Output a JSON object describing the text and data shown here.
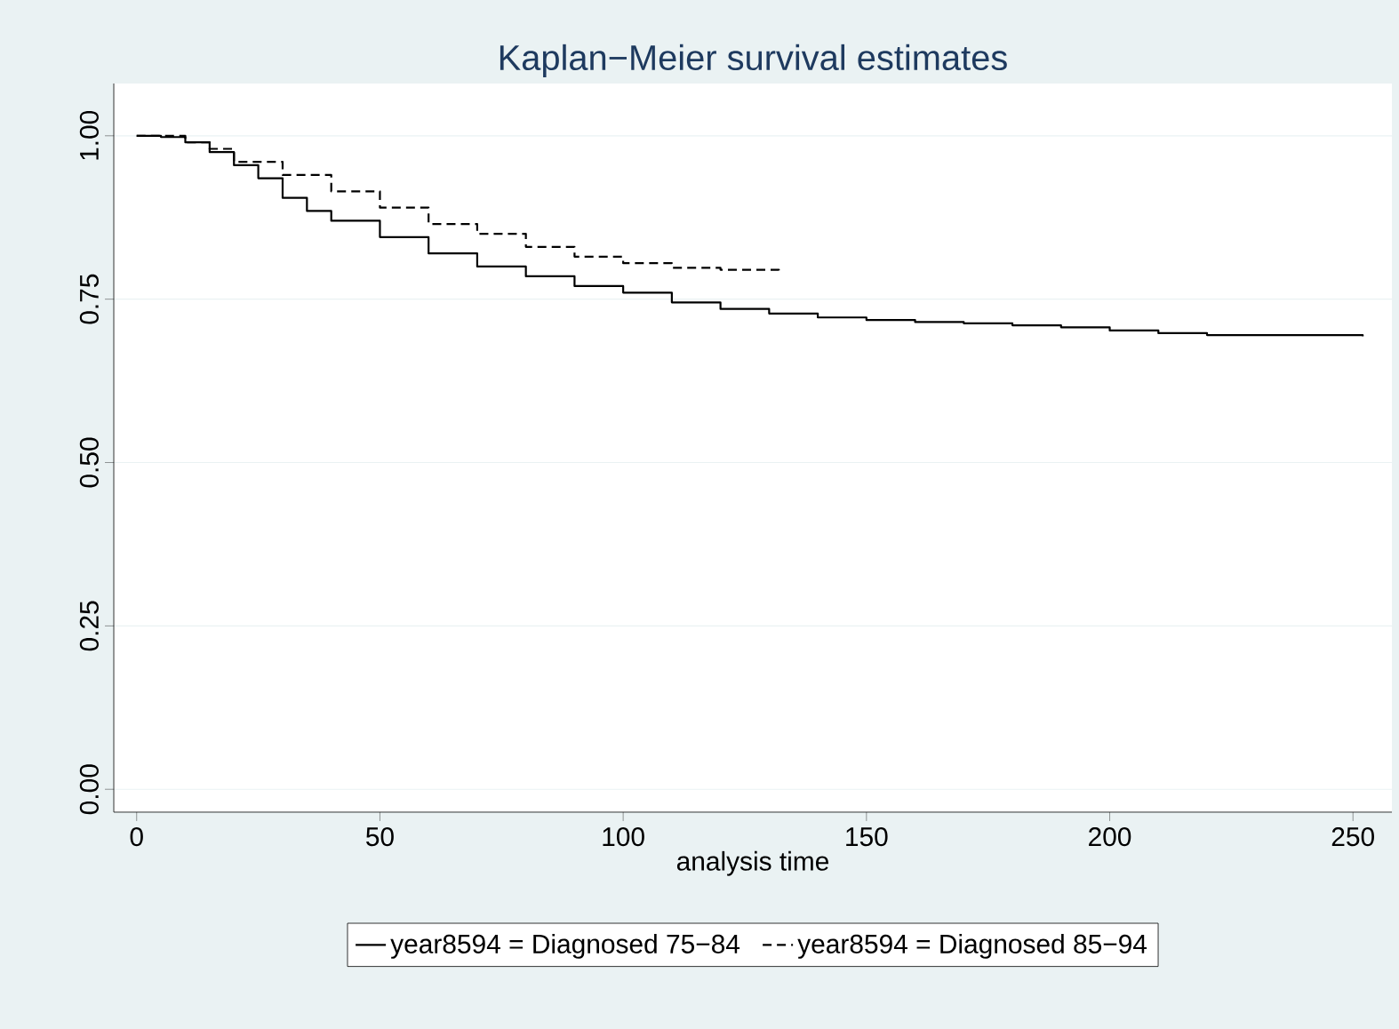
{
  "chart_data": {
    "type": "step",
    "title": "Kaplan−Meier survival estimates",
    "xlabel": "analysis time",
    "xlim": [
      -4.7,
      258
    ],
    "ylim": [
      -0.035,
      1.08
    ],
    "xticks": [
      0,
      50,
      100,
      150,
      200,
      250
    ],
    "yticks": [
      {
        "value": 0,
        "label": "0.00"
      },
      {
        "value": 0.25,
        "label": "0.25"
      },
      {
        "value": 0.5,
        "label": "0.50"
      },
      {
        "value": 0.75,
        "label": "0.75"
      },
      {
        "value": 1,
        "label": "1.00"
      }
    ],
    "grid": "y",
    "legend": "bottom",
    "series": [
      {
        "name": "year8594 = Diagnosed 75−84",
        "color": "#000000",
        "line_style": "solid",
        "x": [
          0,
          5,
          10,
          15,
          20,
          25,
          30,
          35,
          40,
          50,
          60,
          70,
          80,
          90,
          100,
          110,
          120,
          130,
          140,
          150,
          160,
          170,
          180,
          190,
          200,
          210,
          220,
          252
        ],
        "values": [
          1,
          0.998,
          0.99,
          0.975,
          0.955,
          0.935,
          0.905,
          0.885,
          0.87,
          0.845,
          0.82,
          0.8,
          0.785,
          0.77,
          0.76,
          0.745,
          0.735,
          0.728,
          0.722,
          0.718,
          0.715,
          0.713,
          0.71,
          0.707,
          0.702,
          0.698,
          0.695,
          0.693
        ]
      },
      {
        "name": "year8594 = Diagnosed 85−94",
        "color": "#000000",
        "line_style": "dashed",
        "x": [
          0,
          10,
          15,
          20,
          30,
          40,
          50,
          60,
          70,
          80,
          90,
          100,
          110,
          120,
          132
        ],
        "values": [
          1,
          0.99,
          0.98,
          0.96,
          0.94,
          0.915,
          0.89,
          0.865,
          0.85,
          0.83,
          0.815,
          0.805,
          0.798,
          0.795,
          0.79
        ]
      }
    ]
  }
}
